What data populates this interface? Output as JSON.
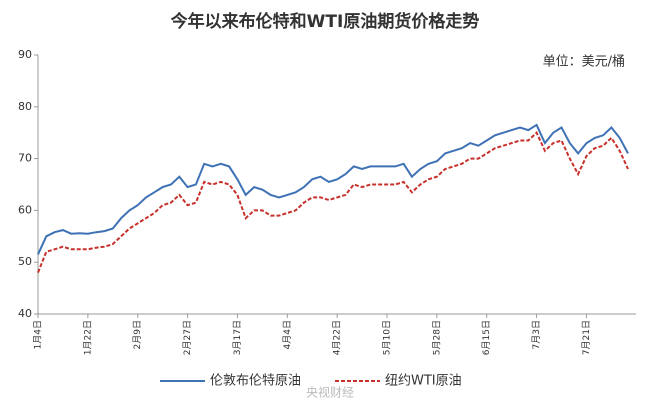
{
  "chart_data": {
    "type": "line",
    "title": "今年以来布伦特和WTI原油期货价格走势",
    "unit_label": "单位：美元/桶",
    "watermark": "央视财经",
    "categories": [
      "1月4日",
      null,
      null,
      null,
      null,
      null,
      "1月22日",
      null,
      null,
      null,
      null,
      null,
      "2月9日",
      null,
      null,
      null,
      null,
      null,
      "2月27日",
      null,
      null,
      null,
      null,
      null,
      "3月17日",
      null,
      null,
      null,
      null,
      null,
      "4月4日",
      null,
      null,
      null,
      null,
      null,
      "4月22日",
      null,
      null,
      null,
      null,
      null,
      "5月10日",
      null,
      null,
      null,
      null,
      null,
      "5月28日",
      null,
      null,
      null,
      null,
      null,
      "6月15日",
      null,
      null,
      null,
      null,
      null,
      "7月3日",
      null,
      null,
      null,
      null,
      null,
      "7月21日",
      null,
      null,
      null,
      null,
      null
    ],
    "series": [
      {
        "name": "伦敦布伦特原油",
        "color": "#3f72b5",
        "dashed": false,
        "values": [
          51.5,
          55,
          55.8,
          56.2,
          55.5,
          55.6,
          55.5,
          55.8,
          56,
          56.5,
          58.5,
          60,
          61,
          62.5,
          63.5,
          64.5,
          65,
          66.5,
          64.5,
          65,
          69,
          68.5,
          69,
          68.5,
          66,
          63,
          64.5,
          64,
          63,
          62.5,
          63,
          63.5,
          64.5,
          66,
          66.5,
          65.5,
          66,
          67,
          68.5,
          68,
          68.5,
          68.5,
          68.5,
          68.5,
          69,
          66.5,
          68,
          69,
          69.5,
          71,
          71.5,
          72,
          73,
          72.5,
          73.5,
          74.5,
          75,
          75.5,
          76,
          75.5,
          76.5,
          73,
          75,
          76,
          73,
          71,
          73,
          74,
          74.5,
          76,
          74,
          71
        ]
      },
      {
        "name": "纽约WTI原油",
        "color": "#c8312b",
        "dashed": true,
        "values": [
          48,
          52,
          52.5,
          53,
          52.5,
          52.5,
          52.5,
          52.8,
          53,
          53.5,
          55,
          56.5,
          57.5,
          58.5,
          59.5,
          61,
          61.5,
          63,
          61,
          61.5,
          65.5,
          65,
          65.5,
          65,
          63,
          58.5,
          60,
          60,
          59,
          59,
          59.5,
          60,
          61.5,
          62.5,
          62.5,
          62,
          62.5,
          63,
          65,
          64.5,
          65,
          65,
          65,
          65,
          65.5,
          63.5,
          65,
          66,
          66.5,
          68,
          68.5,
          69,
          70,
          70,
          71,
          72,
          72.5,
          73,
          73.5,
          73.5,
          75,
          71.5,
          73,
          73.5,
          70,
          67,
          70.5,
          72,
          72.5,
          74,
          71.5,
          68
        ]
      }
    ],
    "ylim": [
      40,
      90
    ],
    "yticks": [
      40,
      50,
      60,
      70,
      80,
      90
    ],
    "grid": false
  }
}
